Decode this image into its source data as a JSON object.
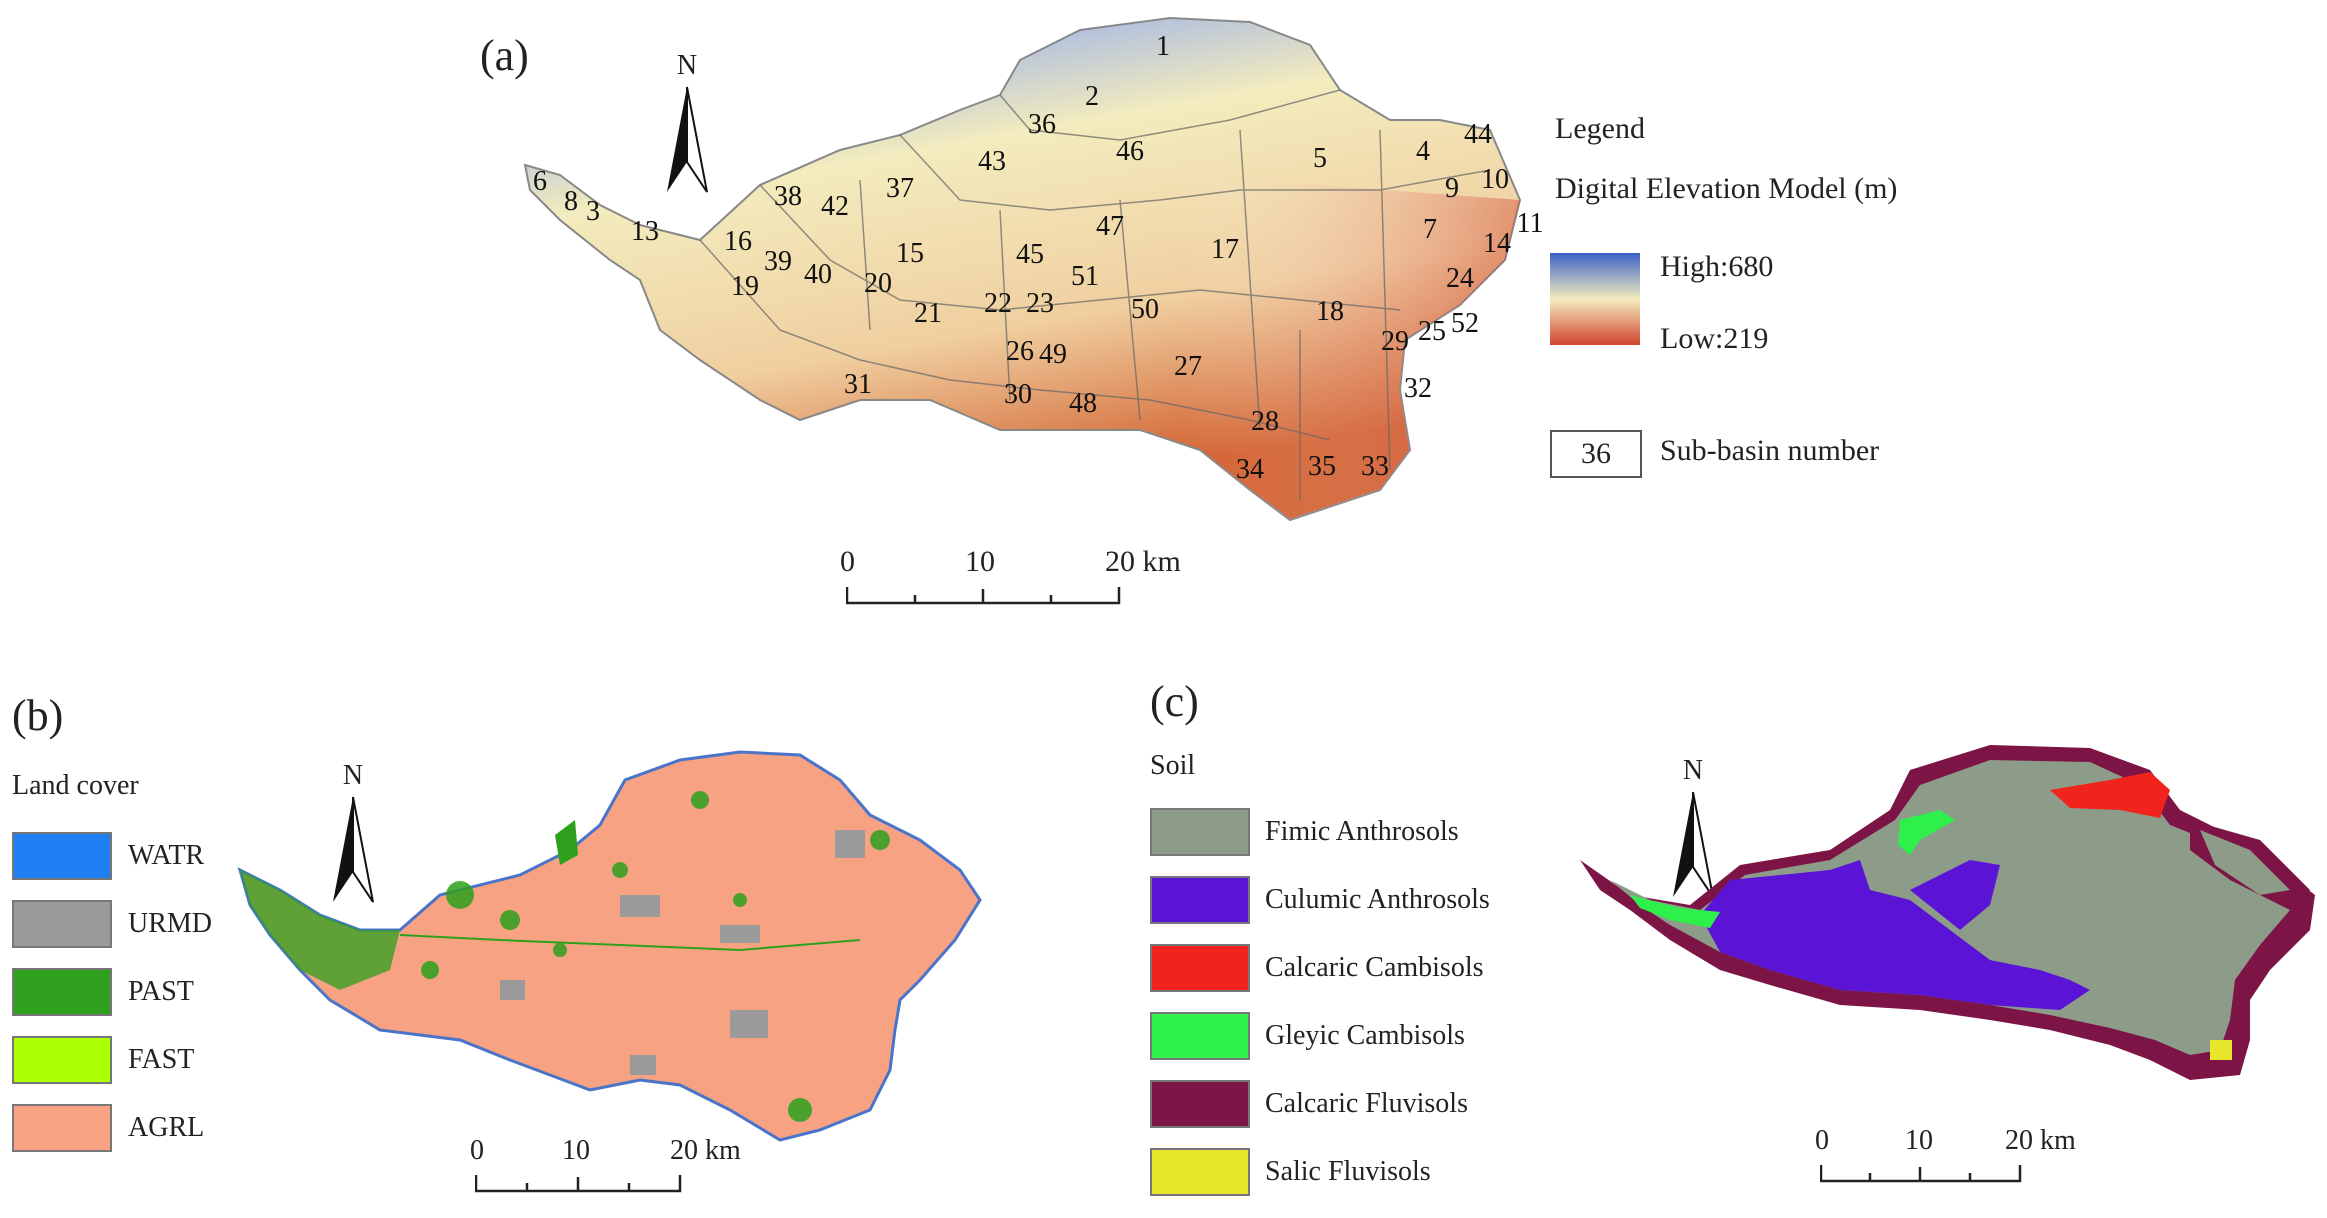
{
  "panel_a": {
    "label": "(a)",
    "north": "N",
    "legend": {
      "title": "Legend",
      "dem_title": "Digital Elevation Model (m)",
      "high": "High:680",
      "low": "Low:219",
      "subbasin_sample": "36",
      "subbasin_label": "Sub-basin number",
      "color_high": "#3c62c8",
      "color_mid": "#f3ecbe",
      "color_low": "#d2442f"
    },
    "scale": {
      "ticks": [
        "0",
        "10",
        "20 km"
      ]
    },
    "subbasins": [
      "1",
      "2",
      "36",
      "43",
      "46",
      "5",
      "4",
      "44",
      "10",
      "9",
      "11",
      "14",
      "7",
      "24",
      "38",
      "42",
      "37",
      "6",
      "8",
      "3",
      "13",
      "16",
      "39",
      "40",
      "20",
      "15",
      "45",
      "47",
      "17",
      "51",
      "19",
      "21",
      "22",
      "23",
      "50",
      "18",
      "29",
      "25",
      "52",
      "26",
      "49",
      "27",
      "31",
      "30",
      "48",
      "32",
      "28",
      "34",
      "35",
      "33"
    ]
  },
  "panel_b": {
    "label": "(b)",
    "north": "N",
    "legend_title": "Land cover",
    "classes": [
      {
        "name": "WATR",
        "color": "#1f7ef2"
      },
      {
        "name": "URMD",
        "color": "#9a9a9a"
      },
      {
        "name": "PAST",
        "color": "#2ea01d"
      },
      {
        "name": "FAST",
        "color": "#aaff00"
      },
      {
        "name": "AGRL",
        "color": "#f6a283"
      }
    ],
    "scale": {
      "ticks": [
        "0",
        "10",
        "20 km"
      ]
    }
  },
  "panel_c": {
    "label": "(c)",
    "north": "N",
    "legend_title": "Soil",
    "classes": [
      {
        "name": "Fimic Anthrosols",
        "color": "#8c9c89"
      },
      {
        "name": "Culumic Anthrosols",
        "color": "#5b13d6"
      },
      {
        "name": "Calcaric Cambisols",
        "color": "#f0241c"
      },
      {
        "name": "Gleyic Cambisols",
        "color": "#2ef04a"
      },
      {
        "name": "Calcaric Fluvisols",
        "color": "#7d1446"
      },
      {
        "name": "Salic Fluvisols",
        "color": "#e8e62a"
      }
    ],
    "scale": {
      "ticks": [
        "0",
        "10",
        "20 km"
      ]
    }
  }
}
